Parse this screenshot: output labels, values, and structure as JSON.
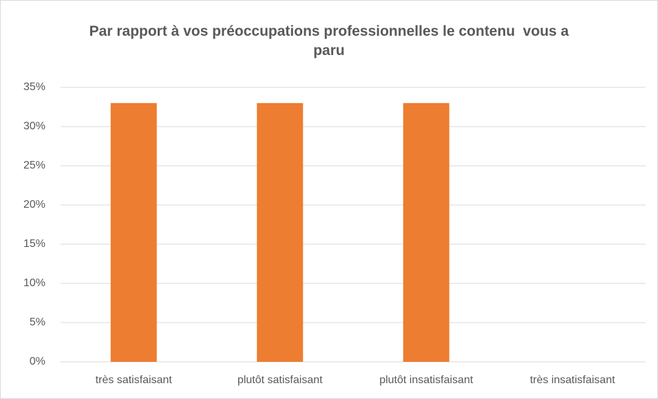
{
  "chart_data": {
    "type": "bar",
    "title": "Par rapport à vos préoccupations professionnelles le contenu  vous a paru",
    "categories": [
      "très satisfaisant",
      "plutôt satisfaisant",
      "plutôt insatisfaisant",
      "très insatisfaisant"
    ],
    "values": [
      33,
      33,
      33,
      0
    ],
    "color": "#ed7d31",
    "ylim": [
      0,
      35
    ],
    "yticks": [
      {
        "value": 0,
        "label": "0%"
      },
      {
        "value": 5,
        "label": "5%"
      },
      {
        "value": 10,
        "label": "10%"
      },
      {
        "value": 15,
        "label": "15%"
      },
      {
        "value": 20,
        "label": "20%"
      },
      {
        "value": 25,
        "label": "25%"
      },
      {
        "value": 30,
        "label": "30%"
      },
      {
        "value": 35,
        "label": "35%"
      }
    ],
    "grid": true
  }
}
